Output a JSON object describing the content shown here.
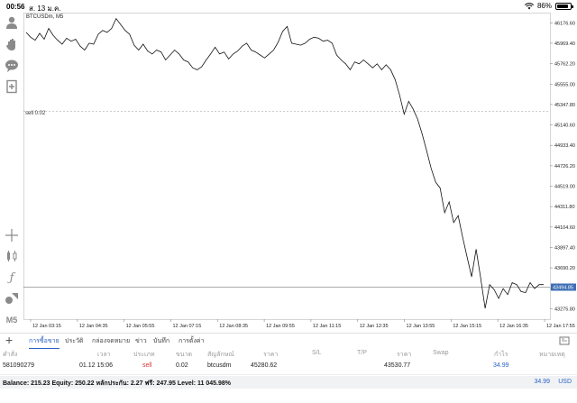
{
  "status_bar": {
    "time": "00:56",
    "date": "ส. 13 ม.ค.",
    "battery": "86%",
    "battery_level": 0.86
  },
  "toolbar": {
    "items": [
      "person-icon",
      "hand-icon",
      "chat-icon",
      "add-page-icon",
      "crosshair-icon",
      "bars-icon",
      "function-icon",
      "objects-icon"
    ],
    "timeframe": "M5"
  },
  "chart": {
    "symbol": "BTCUSDm, M5",
    "sell_line_label": "sell 0.02",
    "current_price": "43494.85",
    "colors": {
      "line": "#111111",
      "grid": "#d9d9d9",
      "price_tag": "#3d6fb5",
      "sell_line": "#9a9a9a"
    },
    "x_labels": [
      "12 Jan 03:15",
      "12 Jan 04:35",
      "12 Jan 05:55",
      "12 Jan 07:15",
      "12 Jan 08:35",
      "12 Jan 09:55",
      "12 Jan 11:15",
      "12 Jan 12:35",
      "12 Jan 13:55",
      "12 Jan 15:15",
      "12 Jan 16:35",
      "12 Jan 17:55"
    ]
  },
  "chart_data": {
    "type": "line",
    "title": "BTCUSDm, M5",
    "ylim": [
      43170,
      46280
    ],
    "y_ticks": [
      "46176.60",
      "45969.40",
      "45762.20",
      "45555.00",
      "45347.80",
      "45140.60",
      "44933.40",
      "44726.20",
      "44519.00",
      "44311.80",
      "44104.60",
      "43897.40",
      "43690.20",
      "43483.00",
      "43275.80"
    ],
    "x_ticks": [
      "12 Jan 03:15",
      "12 Jan 04:35",
      "12 Jan 05:55",
      "12 Jan 07:15",
      "12 Jan 08:35",
      "12 Jan 09:55",
      "12 Jan 11:15",
      "12 Jan 12:35",
      "12 Jan 13:55",
      "12 Jan 15:15",
      "12 Jan 16:35",
      "12 Jan 17:55"
    ],
    "sell_level": 45280.62,
    "current_price": 43494.85,
    "values": [
      46080,
      46030,
      46000,
      46070,
      46010,
      46120,
      46050,
      46000,
      45960,
      46020,
      45990,
      46010,
      45940,
      45900,
      45970,
      45960,
      46060,
      46100,
      46080,
      46120,
      46220,
      46160,
      46100,
      46060,
      45950,
      45900,
      45960,
      45890,
      45860,
      45900,
      45880,
      45800,
      45850,
      45900,
      45860,
      45800,
      45780,
      45720,
      45700,
      45730,
      45800,
      45860,
      45930,
      45860,
      45880,
      45810,
      45860,
      45890,
      45940,
      45970,
      45900,
      45880,
      45850,
      45820,
      45860,
      45900,
      45980,
      46090,
      46140,
      45970,
      45960,
      45950,
      45970,
      46010,
      46030,
      46020,
      45990,
      46000,
      45970,
      45850,
      45800,
      45760,
      45700,
      45780,
      45760,
      45800,
      45760,
      45720,
      45760,
      45700,
      45750,
      45700,
      45600,
      45440,
      45250,
      45380,
      45300,
      45200,
      45050,
      44880,
      44700,
      44560,
      44500,
      44250,
      44360,
      44150,
      44220,
      44000,
      43800,
      43600,
      43880,
      43590,
      43280,
      43520,
      43470,
      43380,
      43480,
      43420,
      43540,
      43520,
      43450,
      43440,
      43540,
      43480,
      43520,
      43520
    ]
  },
  "tabs": [
    "การซื้อขาย",
    "ประวัติ",
    "กล่องจดหมาย",
    "ข่าว",
    "บันทึก",
    "การตั้งค่า"
  ],
  "table": {
    "headers": [
      "คำสั่ง",
      "เวลา",
      "ประเภท",
      "ขนาด",
      "สัญลักษณ์",
      "ราคา",
      "S/L",
      "T/P",
      "ราคา",
      "Swap",
      "กำไร",
      "หมายเหตุ"
    ],
    "row": {
      "order": "581090279",
      "time": "01.12 15:06",
      "type": "sell",
      "size": "0.02",
      "symbol": "btcusdm",
      "open_price": "45280.62",
      "sl": "",
      "tp": "",
      "price": "43530.77",
      "swap": "",
      "profit": "34.99",
      "comment": ""
    }
  },
  "balance": {
    "text": "Balance: 215.23 Equity: 250.22 หลักประกัน: 2.27 ฟรี: 247.95 Level: 11 045.98%",
    "profit": "34.99",
    "currency": "USD"
  }
}
